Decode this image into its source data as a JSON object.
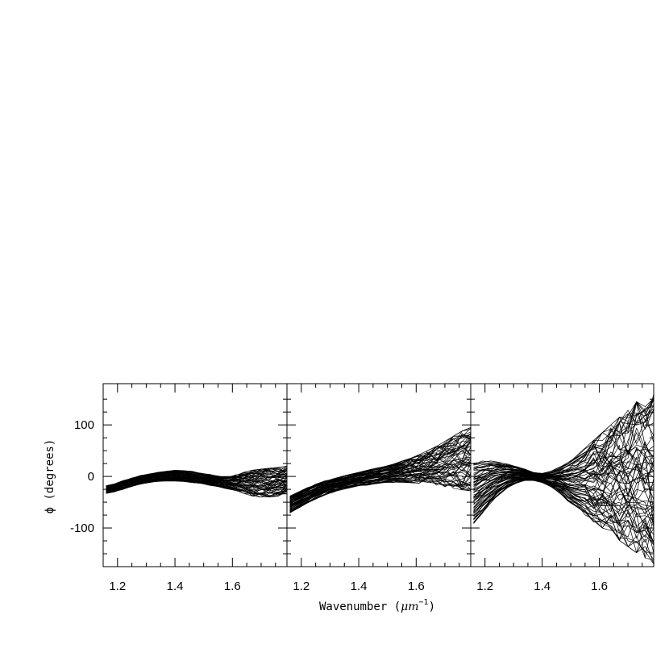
{
  "chart_data": {
    "type": "line",
    "xlabel": "Wavenumber (",
    "xlabel_math": "μm",
    "xlabel_exp": "−1",
    "xlabel_close": ")",
    "ylabel": "ϕ (degrees)",
    "shared_y": true,
    "xlim": [
      1.15,
      1.79
    ],
    "ylim": [
      -175,
      180
    ],
    "xticks": [
      "1.2",
      "1.4",
      "1.6"
    ],
    "xtick_values": [
      1.2,
      1.4,
      1.6
    ],
    "yticks": [
      "100",
      "0",
      "-100"
    ],
    "ytick_values": [
      100,
      0,
      -100
    ],
    "x": [
      1.16,
      1.19,
      1.22,
      1.25,
      1.28,
      1.31,
      1.34,
      1.37,
      1.4,
      1.43,
      1.46,
      1.49,
      1.52,
      1.55,
      1.58,
      1.61,
      1.64,
      1.67,
      1.7,
      1.73,
      1.76,
      1.79
    ],
    "panels": [
      {
        "name": "panel-1",
        "n_curves": 60,
        "envelope_low": [
          -33,
          -30,
          -25,
          -20,
          -15,
          -12,
          -10,
          -9,
          -9,
          -10,
          -12,
          -14,
          -17,
          -20,
          -24,
          -27,
          -33,
          -38,
          -40,
          -40,
          -38,
          -34
        ],
        "envelope_high": [
          -18,
          -14,
          -8,
          -3,
          2,
          5,
          8,
          10,
          12,
          12,
          10,
          7,
          4,
          1,
          0,
          3,
          8,
          12,
          14,
          16,
          18,
          20
        ]
      },
      {
        "name": "panel-2",
        "n_curves": 60,
        "envelope_low": [
          -72,
          -62,
          -52,
          -44,
          -37,
          -31,
          -26,
          -22,
          -19,
          -17,
          -15,
          -13,
          -12,
          -12,
          -12,
          -13,
          -15,
          -17,
          -20,
          -23,
          -26,
          -28
        ],
        "envelope_high": [
          -38,
          -30,
          -22,
          -15,
          -9,
          -4,
          0,
          4,
          8,
          12,
          16,
          20,
          25,
          30,
          35,
          42,
          50,
          58,
          68,
          78,
          88,
          95
        ]
      },
      {
        "name": "panel-3",
        "n_curves": 70,
        "envelope_low": [
          -95,
          -72,
          -52,
          -35,
          -22,
          -13,
          -8,
          -8,
          -12,
          -20,
          -32,
          -48,
          -62,
          -75,
          -88,
          -100,
          -112,
          -124,
          -136,
          -148,
          -158,
          -170
        ],
        "envelope_high": [
          28,
          30,
          30,
          28,
          24,
          20,
          14,
          8,
          6,
          10,
          18,
          28,
          40,
          55,
          70,
          85,
          100,
          115,
          130,
          145,
          155,
          160
        ]
      }
    ]
  }
}
